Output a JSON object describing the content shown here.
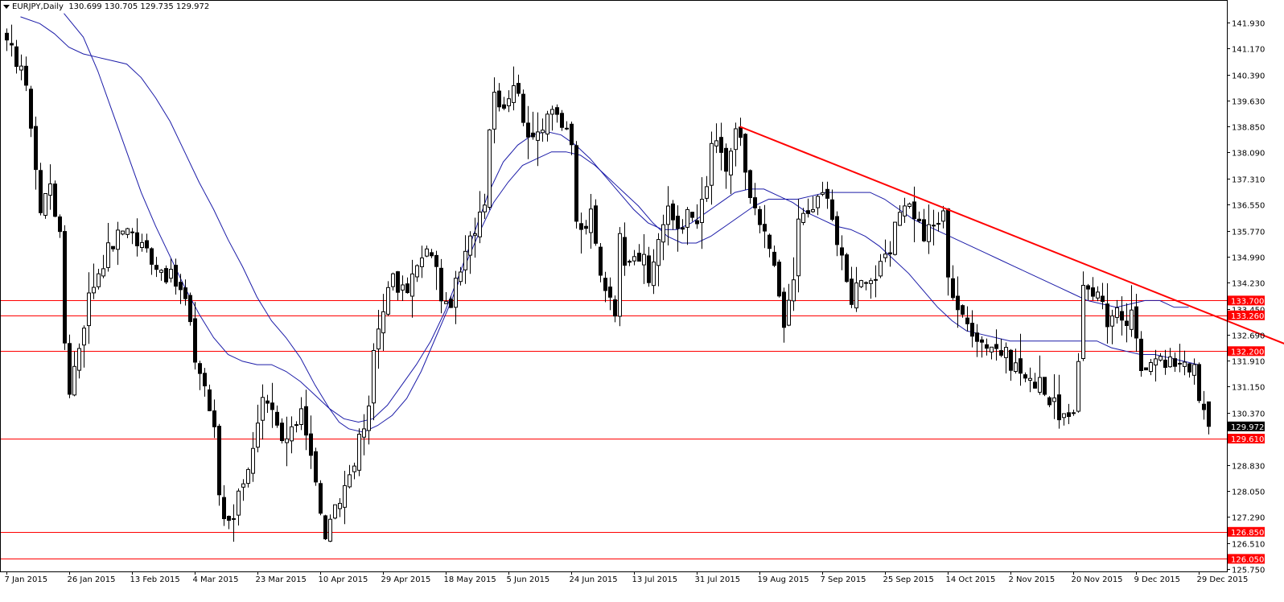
{
  "header": {
    "symbol": "EURJPY",
    "timeframe": ",Daily",
    "ohlc": "130.699 130.705 129.735 129.972"
  },
  "colors": {
    "background": "#ffffff",
    "candle_bull": "#ffffff",
    "candle_bear": "#000000",
    "candle_outline": "#000000",
    "ma": "#1c1ca8",
    "horizontal_level": "#ff0000",
    "trendline": "#ff0000",
    "label_red_bg": "#ff0000",
    "label_black_bg": "#000000"
  },
  "chart_data": {
    "type": "candlestick",
    "title": "",
    "xlabel": "",
    "ylabel": "",
    "ylim": [
      125.75,
      142.23
    ],
    "y_ticks": [
      141.93,
      141.17,
      140.39,
      139.63,
      138.85,
      138.09,
      137.31,
      136.55,
      135.77,
      134.99,
      134.23,
      133.45,
      132.69,
      131.91,
      131.15,
      130.37,
      129.61,
      128.83,
      128.05,
      127.29,
      126.51,
      125.75
    ],
    "y_tick_labels": [
      "141.930",
      "141.170",
      "140.390",
      "139.630",
      "138.850",
      "138.090",
      "137.310",
      "136.550",
      "135.770",
      "134.990",
      "134.230",
      "133.450",
      "132.690",
      "131.910",
      "131.150",
      "130.370",
      "129.610",
      "128.830",
      "128.050",
      "127.290",
      "126.510",
      "125.750"
    ],
    "x_labels": [
      "7 Jan 2015",
      "26 Jan 2015",
      "13 Feb 2015",
      "4 Mar 2015",
      "23 Mar 2015",
      "10 Apr 2015",
      "29 Apr 2015",
      "18 May 2015",
      "5 Jun 2015",
      "24 Jun 2015",
      "13 Jul 2015",
      "31 Jul 2015",
      "19 Aug 2015",
      "7 Sep 2015",
      "25 Sep 2015",
      "14 Oct 2015",
      "2 Nov 2015",
      "20 Nov 2015",
      "9 Dec 2015",
      "29 Dec 2015"
    ],
    "x_label_index": [
      0,
      13,
      26,
      39,
      52,
      65,
      78,
      91,
      104,
      117,
      130,
      143,
      156,
      169,
      182,
      195,
      208,
      221,
      234,
      247
    ],
    "num_bars": 262,
    "last_bar_index": 249,
    "close_path": [
      [
        0,
        141.2
      ],
      [
        3,
        140.7
      ],
      [
        5,
        139.0
      ],
      [
        7,
        136.3
      ],
      [
        9,
        137.3
      ],
      [
        11,
        135.5
      ],
      [
        12,
        132.5
      ],
      [
        13,
        131.1
      ],
      [
        15,
        132.4
      ],
      [
        17,
        133.8
      ],
      [
        19,
        134.6
      ],
      [
        21,
        135.2
      ],
      [
        23,
        135.6
      ],
      [
        25,
        136.0
      ],
      [
        27,
        135.4
      ],
      [
        29,
        135.2
      ],
      [
        31,
        134.8
      ],
      [
        33,
        134.5
      ],
      [
        35,
        134.2
      ],
      [
        37,
        133.7
      ],
      [
        39,
        132.0
      ],
      [
        41,
        131.2
      ],
      [
        43,
        129.8
      ],
      [
        44,
        128.0
      ],
      [
        45,
        127.3
      ],
      [
        47,
        127.4
      ],
      [
        49,
        128.5
      ],
      [
        51,
        129.2
      ],
      [
        53,
        130.6
      ],
      [
        55,
        130.3
      ],
      [
        57,
        129.5
      ],
      [
        59,
        129.7
      ],
      [
        61,
        130.6
      ],
      [
        63,
        129.2
      ],
      [
        65,
        127.3
      ],
      [
        66,
        126.8
      ],
      [
        67,
        127.0
      ],
      [
        69,
        127.8
      ],
      [
        71,
        128.6
      ],
      [
        73,
        129.5
      ],
      [
        75,
        130.4
      ],
      [
        76,
        132.2
      ],
      [
        78,
        133.6
      ],
      [
        80,
        134.3
      ],
      [
        82,
        133.9
      ],
      [
        84,
        134.4
      ],
      [
        86,
        134.9
      ],
      [
        88,
        135.2
      ],
      [
        90,
        133.9
      ],
      [
        91,
        133.4
      ],
      [
        93,
        134.1
      ],
      [
        95,
        135.0
      ],
      [
        97,
        135.9
      ],
      [
        99,
        136.8
      ],
      [
        100,
        138.9
      ],
      [
        101,
        139.9
      ],
      [
        103,
        139.5
      ],
      [
        105,
        140.2
      ],
      [
        107,
        139.2
      ],
      [
        109,
        138.3
      ],
      [
        111,
        139.0
      ],
      [
        113,
        139.6
      ],
      [
        115,
        138.9
      ],
      [
        117,
        138.2
      ],
      [
        118,
        136.1
      ],
      [
        119,
        135.7
      ],
      [
        121,
        136.2
      ],
      [
        123,
        134.4
      ],
      [
        125,
        133.9
      ],
      [
        126,
        133.5
      ],
      [
        127,
        135.5
      ],
      [
        128,
        135.0
      ],
      [
        130,
        135.2
      ],
      [
        132,
        134.8
      ],
      [
        133,
        134.2
      ],
      [
        135,
        135.6
      ],
      [
        137,
        136.3
      ],
      [
        139,
        135.9
      ],
      [
        141,
        136.2
      ],
      [
        143,
        136.0
      ],
      [
        145,
        137.0
      ],
      [
        146,
        138.4
      ],
      [
        147,
        138.2
      ],
      [
        149,
        137.6
      ],
      [
        151,
        138.7
      ],
      [
        152,
        138.4
      ],
      [
        153,
        137.3
      ],
      [
        155,
        136.2
      ],
      [
        157,
        135.6
      ],
      [
        159,
        135.0
      ],
      [
        160,
        133.6
      ],
      [
        161,
        132.9
      ],
      [
        163,
        134.4
      ],
      [
        164,
        136.0
      ],
      [
        166,
        136.3
      ],
      [
        168,
        136.6
      ],
      [
        170,
        137.0
      ],
      [
        172,
        135.4
      ],
      [
        174,
        134.2
      ],
      [
        175,
        133.8
      ],
      [
        177,
        134.5
      ],
      [
        179,
        134.3
      ],
      [
        181,
        134.6
      ],
      [
        183,
        135.1
      ],
      [
        185,
        136.4
      ],
      [
        186,
        136.7
      ],
      [
        188,
        136.3
      ],
      [
        190,
        135.6
      ],
      [
        192,
        135.9
      ],
      [
        194,
        136.2
      ],
      [
        195,
        134.6
      ],
      [
        196,
        133.9
      ],
      [
        198,
        133.1
      ],
      [
        200,
        132.9
      ],
      [
        202,
        132.5
      ],
      [
        204,
        132.4
      ],
      [
        206,
        132.2
      ],
      [
        208,
        131.9
      ],
      [
        210,
        131.6
      ],
      [
        212,
        131.2
      ],
      [
        214,
        131.5
      ],
      [
        216,
        130.7
      ],
      [
        218,
        130.4
      ],
      [
        220,
        130.1
      ],
      [
        221,
        130.1
      ],
      [
        222,
        131.9
      ],
      [
        223,
        134.3
      ],
      [
        225,
        134.0
      ],
      [
        227,
        133.7
      ],
      [
        228,
        133.1
      ],
      [
        230,
        133.3
      ],
      [
        231,
        132.9
      ],
      [
        233,
        133.2
      ],
      [
        235,
        131.7
      ],
      [
        236,
        131.9
      ],
      [
        238,
        132.2
      ],
      [
        240,
        131.7
      ],
      [
        242,
        131.9
      ],
      [
        244,
        132.0
      ],
      [
        246,
        131.6
      ],
      [
        247,
        130.7
      ],
      [
        249,
        129.972
      ]
    ],
    "series": [
      {
        "kind": "moving_average_long",
        "values": [
          [
            3,
            142.1
          ],
          [
            7,
            141.9
          ],
          [
            10,
            141.6
          ],
          [
            13,
            141.2
          ],
          [
            16,
            141.0
          ],
          [
            19,
            140.9
          ],
          [
            22,
            140.8
          ],
          [
            25,
            140.7
          ],
          [
            28,
            140.3
          ],
          [
            31,
            139.7
          ],
          [
            34,
            139.0
          ],
          [
            37,
            138.1
          ],
          [
            40,
            137.2
          ],
          [
            43,
            136.4
          ],
          [
            46,
            135.5
          ],
          [
            49,
            134.7
          ],
          [
            52,
            133.8
          ],
          [
            55,
            133.1
          ],
          [
            58,
            132.6
          ],
          [
            61,
            132.0
          ],
          [
            64,
            131.2
          ],
          [
            67,
            130.5
          ],
          [
            69,
            130.1
          ],
          [
            71,
            129.9
          ],
          [
            74,
            129.8
          ],
          [
            77,
            130.0
          ],
          [
            80,
            130.3
          ],
          [
            83,
            130.8
          ],
          [
            86,
            131.6
          ],
          [
            89,
            132.6
          ],
          [
            92,
            133.6
          ],
          [
            95,
            134.7
          ],
          [
            98,
            135.7
          ],
          [
            101,
            136.6
          ],
          [
            104,
            137.2
          ],
          [
            107,
            137.7
          ],
          [
            110,
            137.9
          ],
          [
            113,
            138.1
          ],
          [
            116,
            138.1
          ],
          [
            119,
            138.0
          ],
          [
            122,
            137.7
          ],
          [
            125,
            137.3
          ],
          [
            128,
            136.9
          ],
          [
            131,
            136.5
          ],
          [
            134,
            136.0
          ],
          [
            137,
            135.6
          ],
          [
            140,
            135.4
          ],
          [
            143,
            135.4
          ],
          [
            146,
            135.6
          ],
          [
            149,
            135.9
          ],
          [
            152,
            136.2
          ],
          [
            155,
            136.5
          ],
          [
            158,
            136.7
          ],
          [
            161,
            136.7
          ],
          [
            164,
            136.7
          ],
          [
            167,
            136.8
          ],
          [
            170,
            136.9
          ],
          [
            173,
            136.9
          ],
          [
            176,
            136.9
          ],
          [
            179,
            136.9
          ],
          [
            182,
            136.7
          ],
          [
            185,
            136.4
          ],
          [
            188,
            136.1
          ],
          [
            191,
            135.9
          ],
          [
            194,
            135.7
          ],
          [
            197,
            135.5
          ],
          [
            200,
            135.3
          ],
          [
            203,
            135.1
          ],
          [
            206,
            134.9
          ],
          [
            209,
            134.7
          ],
          [
            212,
            134.5
          ],
          [
            215,
            134.3
          ],
          [
            218,
            134.1
          ],
          [
            221,
            133.9
          ],
          [
            224,
            133.7
          ],
          [
            227,
            133.6
          ],
          [
            230,
            133.5
          ],
          [
            233,
            133.6
          ],
          [
            236,
            133.7
          ],
          [
            239,
            133.7
          ],
          [
            242,
            133.5
          ],
          [
            245,
            133.5
          ]
        ]
      },
      {
        "kind": "moving_average_short",
        "values": [
          [
            12,
            142.2
          ],
          [
            16,
            141.5
          ],
          [
            19,
            140.5
          ],
          [
            22,
            139.3
          ],
          [
            25,
            138.1
          ],
          [
            28,
            136.9
          ],
          [
            31,
            135.9
          ],
          [
            34,
            135.0
          ],
          [
            37,
            134.1
          ],
          [
            40,
            133.3
          ],
          [
            43,
            132.6
          ],
          [
            46,
            132.1
          ],
          [
            49,
            131.9
          ],
          [
            52,
            131.8
          ],
          [
            55,
            131.8
          ],
          [
            58,
            131.6
          ],
          [
            61,
            131.3
          ],
          [
            64,
            130.9
          ],
          [
            67,
            130.5
          ],
          [
            70,
            130.2
          ],
          [
            73,
            130.1
          ],
          [
            76,
            130.2
          ],
          [
            79,
            130.6
          ],
          [
            82,
            131.2
          ],
          [
            85,
            131.8
          ],
          [
            88,
            132.5
          ],
          [
            91,
            133.4
          ],
          [
            94,
            134.5
          ],
          [
            97,
            135.7
          ],
          [
            100,
            136.9
          ],
          [
            103,
            137.8
          ],
          [
            106,
            138.3
          ],
          [
            109,
            138.6
          ],
          [
            112,
            138.7
          ],
          [
            115,
            138.6
          ],
          [
            118,
            138.3
          ],
          [
            121,
            137.9
          ],
          [
            124,
            137.4
          ],
          [
            127,
            136.9
          ],
          [
            130,
            136.4
          ],
          [
            133,
            136.0
          ],
          [
            136,
            135.8
          ],
          [
            139,
            135.8
          ],
          [
            142,
            136.0
          ],
          [
            145,
            136.3
          ],
          [
            148,
            136.6
          ],
          [
            151,
            136.9
          ],
          [
            154,
            137.0
          ],
          [
            157,
            137.0
          ],
          [
            160,
            136.8
          ],
          [
            163,
            136.6
          ],
          [
            166,
            136.3
          ],
          [
            169,
            136.1
          ],
          [
            172,
            135.9
          ],
          [
            175,
            135.8
          ],
          [
            178,
            135.6
          ],
          [
            181,
            135.3
          ],
          [
            184,
            134.9
          ],
          [
            187,
            134.5
          ],
          [
            190,
            134.0
          ],
          [
            193,
            133.5
          ],
          [
            196,
            133.1
          ],
          [
            199,
            132.8
          ],
          [
            202,
            132.7
          ],
          [
            205,
            132.6
          ],
          [
            208,
            132.5
          ],
          [
            211,
            132.5
          ],
          [
            214,
            132.5
          ],
          [
            217,
            132.5
          ],
          [
            220,
            132.5
          ],
          [
            223,
            132.5
          ],
          [
            226,
            132.5
          ],
          [
            229,
            132.3
          ],
          [
            232,
            132.2
          ],
          [
            235,
            132.1
          ],
          [
            238,
            132.1
          ],
          [
            241,
            132.0
          ],
          [
            244,
            131.9
          ],
          [
            247,
            131.8
          ]
        ]
      }
    ],
    "horizontal_levels": [
      {
        "value": 133.7,
        "label": "133.700"
      },
      {
        "value": 133.26,
        "label": "133.260"
      },
      {
        "value": 132.2,
        "label": "132.200"
      },
      {
        "value": 129.61,
        "label": "129.610"
      },
      {
        "value": 126.85,
        "label": "126.850"
      },
      {
        "value": 126.05,
        "label": "126.050"
      }
    ],
    "current_price": {
      "value": 129.972,
      "label": "129.972"
    },
    "trendline": {
      "from": [
        152,
        138.85
      ],
      "to": [
        288,
        131.1
      ]
    },
    "grid": false
  }
}
